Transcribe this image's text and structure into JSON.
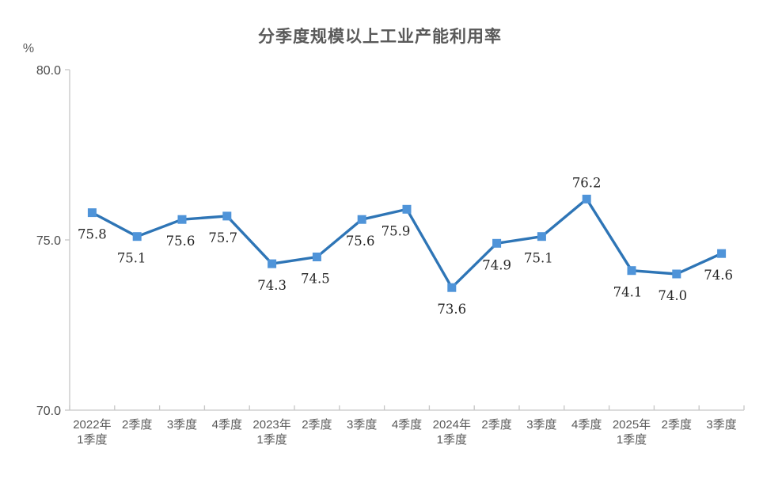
{
  "chart": {
    "title": "分季度规模以上工业产能利用率",
    "unit_label": "%"
  },
  "chart_data": {
    "type": "line",
    "title": "分季度规模以上工业产能利用率",
    "ylabel": "%",
    "xlabel": "",
    "ylim": [
      70.0,
      80.0
    ],
    "grid": false,
    "legend": "none",
    "yticks": [
      {
        "value": 80.0,
        "label": "80.0"
      },
      {
        "value": 75.0,
        "label": "75.0"
      },
      {
        "value": 70.0,
        "label": "70.0"
      }
    ],
    "categories": [
      "2022年\n1季度",
      "2季度",
      "3季度",
      "4季度",
      "2023年\n1季度",
      "2季度",
      "3季度",
      "4季度",
      "2024年\n1季度",
      "2季度",
      "3季度",
      "4季度",
      "2025年\n1季度",
      "2季度",
      "3季度"
    ],
    "values": [
      75.8,
      75.1,
      75.6,
      75.7,
      74.3,
      74.5,
      75.6,
      75.9,
      73.6,
      74.9,
      75.1,
      76.2,
      74.1,
      74.0,
      74.6
    ],
    "data_labels": [
      "75.8",
      "75.1",
      "75.6",
      "75.7",
      "74.3",
      "74.5",
      "75.6",
      "75.9",
      "73.6",
      "74.9",
      "75.1",
      "76.2",
      "74.1",
      "74.0",
      "74.6"
    ],
    "label_placement": [
      "below",
      "below",
      "below",
      "below",
      "below",
      "below",
      "below",
      "below",
      "below",
      "below",
      "below",
      "above",
      "below",
      "below",
      "below"
    ],
    "label_dx": [
      0,
      -7,
      -2,
      -5,
      0,
      -2,
      -2,
      -14,
      0,
      0,
      -4,
      0,
      -5,
      -5,
      -4
    ],
    "colors": {
      "line": "#2E75B6",
      "marker": "#4F94D9",
      "axis": "#C6C6C6",
      "y_tick_label": "#4d4d4d",
      "x_tick_label": "#595959",
      "data_label": "#262626",
      "title": "#595959",
      "unit_label": "#595959"
    }
  }
}
